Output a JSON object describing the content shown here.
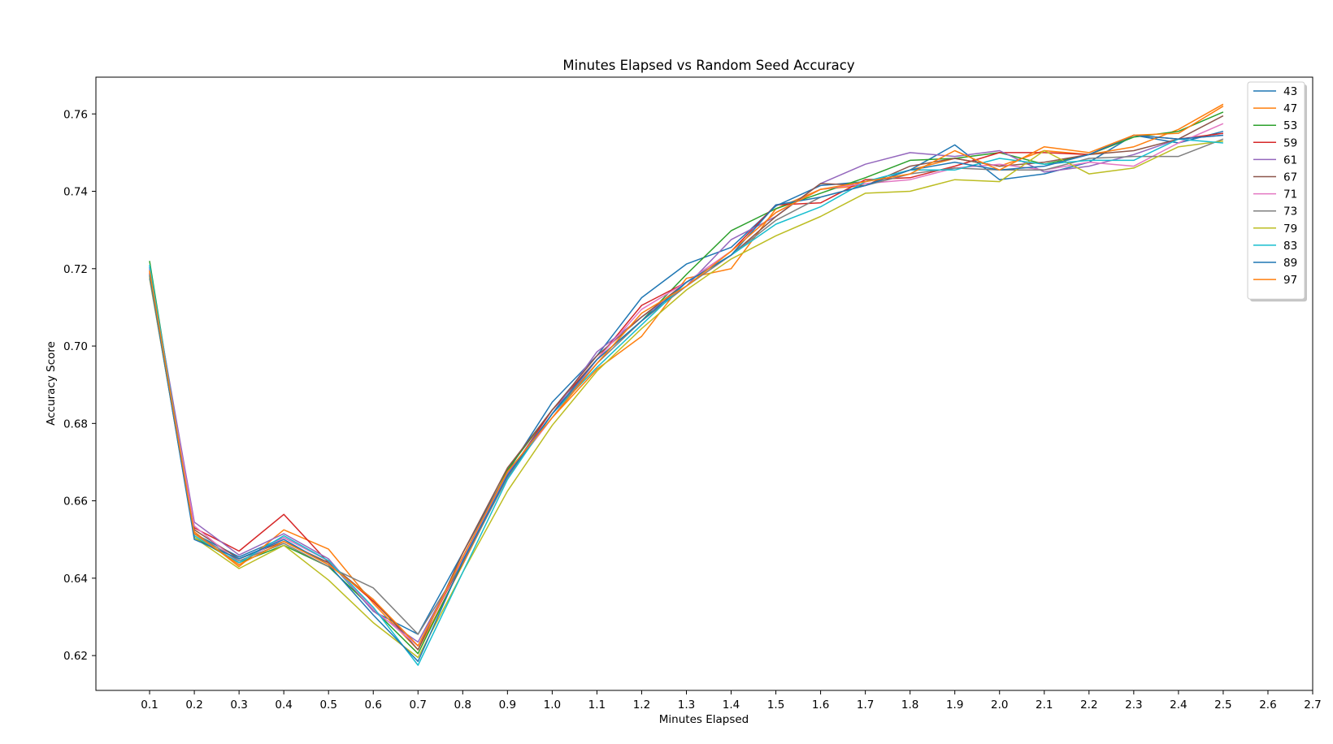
{
  "chart_data": {
    "type": "line",
    "title": "Minutes Elapsed vs Random Seed Accuracy",
    "xlabel": "Minutes Elapsed",
    "ylabel": "Accuracy Score",
    "xlim": [
      -0.02,
      2.7
    ],
    "ylim": [
      0.611,
      0.7695
    ],
    "xticks": [
      "0.1",
      "0.2",
      "0.3",
      "0.4",
      "0.5",
      "0.6",
      "0.7",
      "0.8",
      "0.9",
      "1.0",
      "1.1",
      "1.2",
      "1.3",
      "1.4",
      "1.5",
      "1.6",
      "1.7",
      "1.8",
      "1.9",
      "2.0",
      "2.1",
      "2.2",
      "2.3",
      "2.4",
      "2.5",
      "2.6",
      "2.7"
    ],
    "yticks": [
      "0.62",
      "0.64",
      "0.66",
      "0.68",
      "0.70",
      "0.72",
      "0.74",
      "0.76"
    ],
    "grid": false,
    "legend_position": "top-right",
    "x": [
      0.1,
      0.2,
      0.3,
      0.4,
      0.5,
      0.6,
      0.7,
      0.8,
      0.9,
      1.0,
      1.1,
      1.2,
      1.3,
      1.4,
      1.5,
      1.6,
      1.7,
      1.8,
      1.9,
      2.0,
      2.1,
      2.2,
      2.3,
      2.4,
      2.5
    ],
    "series": [
      {
        "name": "43",
        "color": "#1f77b4",
        "values": [
          0.7205,
          0.6515,
          0.6455,
          0.6505,
          0.6445,
          0.6315,
          0.6255,
          0.6465,
          0.6675,
          0.6855,
          0.6975,
          0.7125,
          0.7212,
          0.7255,
          0.7362,
          0.7415,
          0.7425,
          0.7455,
          0.752,
          0.743,
          0.7445,
          0.7475,
          0.7545,
          0.7525,
          0.7555
        ]
      },
      {
        "name": "47",
        "color": "#ff7f0e",
        "values": [
          0.718,
          0.652,
          0.643,
          0.6525,
          0.6475,
          0.6335,
          0.6215,
          0.6435,
          0.6665,
          0.6815,
          0.694,
          0.7025,
          0.7175,
          0.72,
          0.7355,
          0.7405,
          0.7415,
          0.7455,
          0.7485,
          0.7465,
          0.7505,
          0.7495,
          0.7515,
          0.756,
          0.7625
        ]
      },
      {
        "name": "53",
        "color": "#2ca02c",
        "values": [
          0.722,
          0.6505,
          0.644,
          0.6485,
          0.643,
          0.632,
          0.6205,
          0.644,
          0.668,
          0.6835,
          0.6965,
          0.7065,
          0.7185,
          0.7298,
          0.7355,
          0.7395,
          0.7435,
          0.748,
          0.7485,
          0.75,
          0.747,
          0.7495,
          0.754,
          0.7555,
          0.7605
        ]
      },
      {
        "name": "59",
        "color": "#d62728",
        "values": [
          0.719,
          0.653,
          0.647,
          0.6565,
          0.644,
          0.634,
          0.6225,
          0.6445,
          0.6665,
          0.6835,
          0.6965,
          0.7105,
          0.7165,
          0.7245,
          0.7365,
          0.737,
          0.743,
          0.7435,
          0.7465,
          0.75,
          0.75,
          0.7495,
          0.7545,
          0.7535,
          0.755
        ]
      },
      {
        "name": "61",
        "color": "#9467bd",
        "values": [
          0.72,
          0.6545,
          0.646,
          0.6515,
          0.645,
          0.6315,
          0.6235,
          0.645,
          0.667,
          0.6825,
          0.6985,
          0.7075,
          0.7155,
          0.7275,
          0.7335,
          0.742,
          0.747,
          0.75,
          0.749,
          0.7505,
          0.745,
          0.7465,
          0.7495,
          0.7535,
          0.7545
        ]
      },
      {
        "name": "67",
        "color": "#8c564b",
        "values": [
          0.7195,
          0.6525,
          0.645,
          0.6495,
          0.644,
          0.6345,
          0.6215,
          0.6465,
          0.6685,
          0.6835,
          0.6975,
          0.7075,
          0.7165,
          0.7235,
          0.7335,
          0.742,
          0.7415,
          0.7465,
          0.7485,
          0.7465,
          0.7475,
          0.7495,
          0.7505,
          0.7535,
          0.7595
        ]
      },
      {
        "name": "71",
        "color": "#e377c2",
        "values": [
          0.7185,
          0.6535,
          0.644,
          0.6505,
          0.6445,
          0.632,
          0.6225,
          0.645,
          0.6665,
          0.6815,
          0.6965,
          0.7095,
          0.7165,
          0.7245,
          0.7345,
          0.7405,
          0.742,
          0.743,
          0.746,
          0.747,
          0.7455,
          0.7475,
          0.7465,
          0.7525,
          0.7575
        ]
      },
      {
        "name": "73",
        "color": "#7f7f7f",
        "values": [
          0.7175,
          0.6515,
          0.6445,
          0.649,
          0.643,
          0.6375,
          0.6255,
          0.644,
          0.666,
          0.6825,
          0.6955,
          0.7065,
          0.7155,
          0.7235,
          0.7325,
          0.7385,
          0.7415,
          0.7445,
          0.746,
          0.7455,
          0.7455,
          0.7485,
          0.749,
          0.749,
          0.7535
        ]
      },
      {
        "name": "79",
        "color": "#bcbd22",
        "values": [
          0.718,
          0.6505,
          0.6425,
          0.6485,
          0.6395,
          0.6285,
          0.6195,
          0.6415,
          0.6625,
          0.6795,
          0.6935,
          0.7045,
          0.7145,
          0.7225,
          0.7285,
          0.7335,
          0.7395,
          0.74,
          0.743,
          0.7425,
          0.7505,
          0.7445,
          0.746,
          0.7515,
          0.753
        ]
      },
      {
        "name": "83",
        "color": "#17becf",
        "values": [
          0.721,
          0.651,
          0.644,
          0.651,
          0.6445,
          0.6325,
          0.6175,
          0.6415,
          0.6655,
          0.6825,
          0.6945,
          0.7055,
          0.7165,
          0.7235,
          0.7315,
          0.736,
          0.7425,
          0.7455,
          0.7455,
          0.7485,
          0.747,
          0.748,
          0.748,
          0.7535,
          0.7525
        ]
      },
      {
        "name": "89",
        "color": "#1f77b4",
        "values": [
          0.7185,
          0.65,
          0.645,
          0.65,
          0.6435,
          0.6305,
          0.6185,
          0.6445,
          0.6665,
          0.6825,
          0.6965,
          0.7065,
          0.7165,
          0.7235,
          0.7365,
          0.7385,
          0.7415,
          0.7455,
          0.7475,
          0.7455,
          0.7465,
          0.7495,
          0.7545,
          0.7535,
          0.7545
        ]
      },
      {
        "name": "97",
        "color": "#ff7f0e",
        "values": [
          0.7195,
          0.6515,
          0.6435,
          0.6495,
          0.6435,
          0.6345,
          0.6225,
          0.6455,
          0.6675,
          0.6815,
          0.6955,
          0.7085,
          0.7155,
          0.7245,
          0.7345,
          0.7405,
          0.7425,
          0.7445,
          0.7505,
          0.7455,
          0.7515,
          0.75,
          0.7545,
          0.755,
          0.762
        ]
      }
    ]
  }
}
